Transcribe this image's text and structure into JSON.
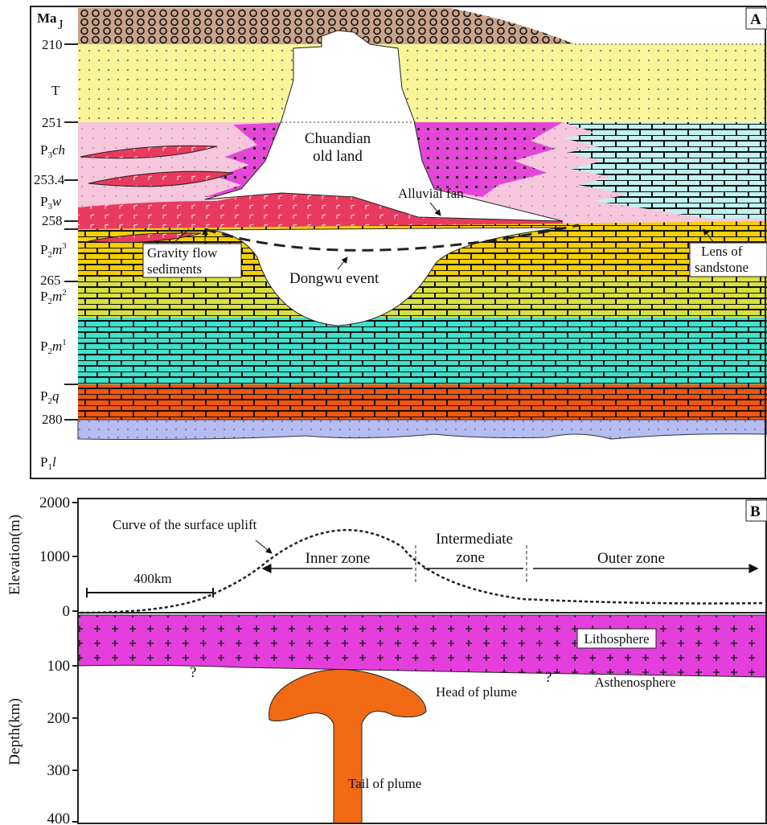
{
  "panel_a": {
    "label": "A",
    "time_unit": "Ma",
    "units": [
      {
        "base": "J"
      },
      {
        "base": "T"
      },
      {
        "base": "P",
        "sub": "3",
        "name": "ch"
      },
      {
        "base": "P",
        "sub": "3",
        "name": "w"
      },
      {
        "base": "P",
        "sub": "2",
        "name": "m",
        "sup": "3"
      },
      {
        "base": "P",
        "sub": "2",
        "name": "m",
        "sup": "2"
      },
      {
        "base": "P",
        "sub": "2",
        "name": "m",
        "sup": "1"
      },
      {
        "base": "P",
        "sub": "2",
        "name": "q"
      },
      {
        "base": "P",
        "sub": "1",
        "name": "l"
      }
    ],
    "ages": [
      210,
      251,
      253.4,
      258,
      265,
      280
    ],
    "annotations": {
      "old_land": [
        "Chuandian",
        "old  land"
      ],
      "alluvial_fan": "Alluvial fan",
      "gravity_flow": [
        "Gravity flow",
        "sediments"
      ],
      "dongwu": "Dongwu event",
      "lens": [
        "Lens of",
        "sandstone"
      ]
    }
  },
  "panel_b": {
    "label": "B",
    "elevation_axis": "Elevation(m)",
    "depth_axis": "Depth(km)",
    "elevation_ticks": [
      2000,
      1000,
      0
    ],
    "depth_ticks": [
      100,
      200,
      300,
      400
    ],
    "annotations": {
      "curve": "Curve of the surface uplift",
      "scale": "400km",
      "inner": "Inner zone",
      "intermediate": [
        "Intermediate",
        "zone"
      ],
      "outer": "Outer zone",
      "lithosphere": "Lithosphere",
      "asthenosphere": "Asthenosphere",
      "question": "?",
      "head": "Head of plume",
      "tail": "Tail of plume"
    }
  }
}
